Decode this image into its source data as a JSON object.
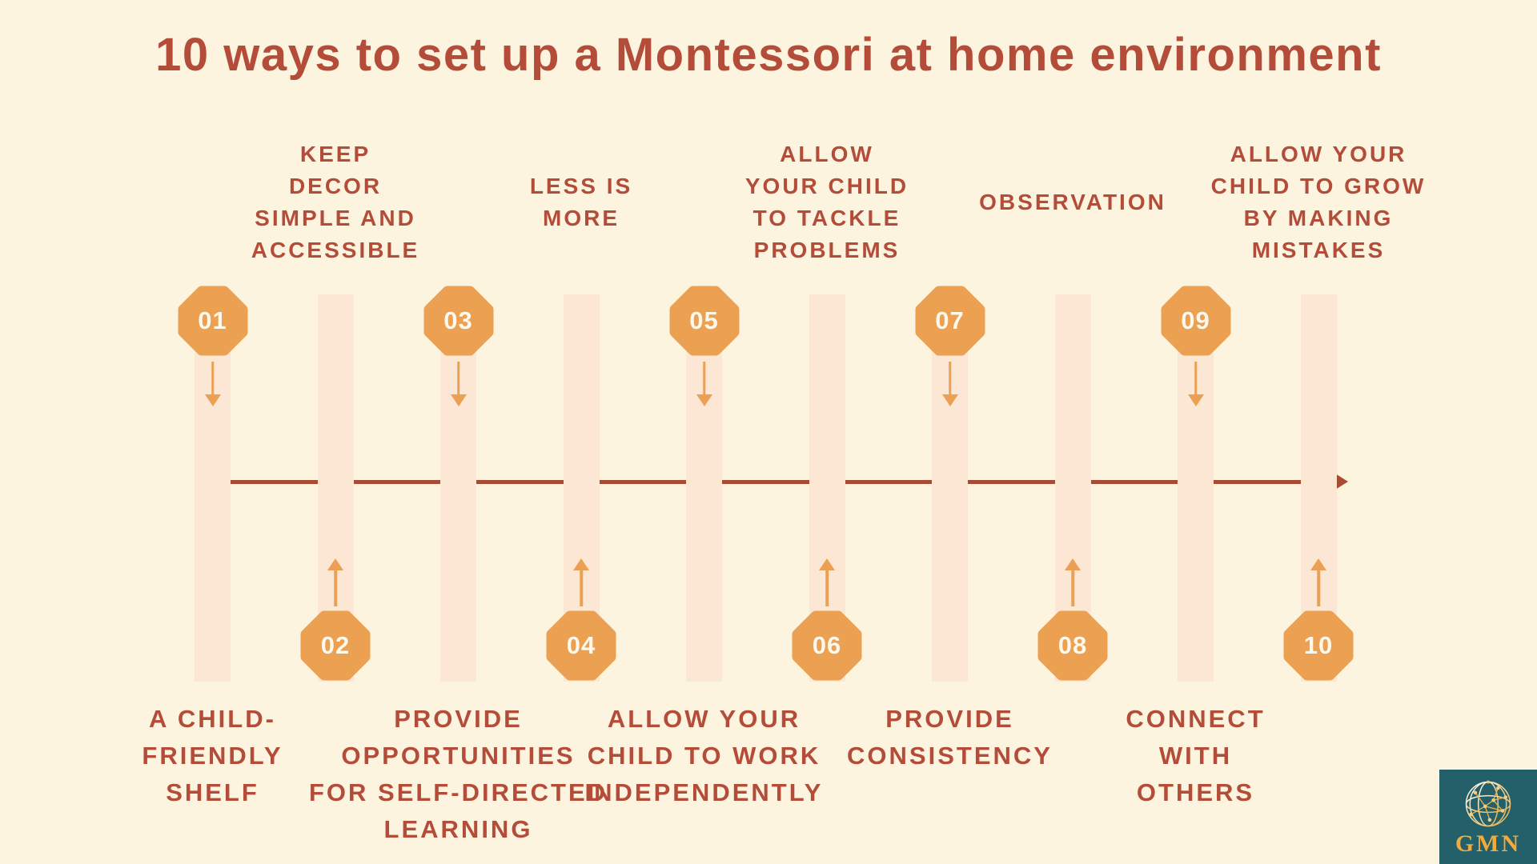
{
  "title": "10 ways to set up a Montessori at home environment",
  "items": [
    {
      "number": "01",
      "label": "A CHILD-FRIENDLY SHELF",
      "lines": [
        "A CHILD-",
        "FRIENDLY",
        "SHELF"
      ],
      "badge_position": "above-line",
      "label_position": "bottom"
    },
    {
      "number": "02",
      "label": "KEEP DECOR SIMPLE AND ACCESSIBLE",
      "lines": [
        "KEEP",
        "DECOR",
        "SIMPLE AND",
        "ACCESSIBLE"
      ],
      "badge_position": "below-line",
      "label_position": "top"
    },
    {
      "number": "03",
      "label": "PROVIDE OPPORTUNITIES FOR SELF-DIRECTED LEARNING",
      "lines": [
        "PROVIDE",
        "OPPORTUNITIES",
        "FOR SELF-DIRECTED",
        "LEARNING"
      ],
      "badge_position": "above-line",
      "label_position": "bottom"
    },
    {
      "number": "04",
      "label": "LESS IS MORE",
      "lines": [
        "LESS IS",
        "MORE"
      ],
      "badge_position": "below-line",
      "label_position": "top"
    },
    {
      "number": "05",
      "label": "ALLOW YOUR CHILD TO WORK INDEPENDENTLY",
      "lines": [
        "ALLOW YOUR",
        "CHILD TO WORK",
        "INDEPENDENTLY"
      ],
      "badge_position": "above-line",
      "label_position": "bottom"
    },
    {
      "number": "06",
      "label": "ALLOW YOUR CHILD TO TACKLE PROBLEMS",
      "lines": [
        "ALLOW",
        "YOUR CHILD",
        "TO TACKLE",
        "PROBLEMS"
      ],
      "badge_position": "below-line",
      "label_position": "top"
    },
    {
      "number": "07",
      "label": "PROVIDE CONSISTENCY",
      "lines": [
        "PROVIDE",
        "CONSISTENCY"
      ],
      "badge_position": "above-line",
      "label_position": "bottom"
    },
    {
      "number": "08",
      "label": "OBSERVATION",
      "lines": [
        "OBSERVATION"
      ],
      "badge_position": "below-line",
      "label_position": "top"
    },
    {
      "number": "09",
      "label": "CONNECT WITH OTHERS",
      "lines": [
        "CONNECT",
        "WITH",
        "OTHERS"
      ],
      "badge_position": "above-line",
      "label_position": "bottom"
    },
    {
      "number": "10",
      "label": "ALLOW YOUR CHILD TO GROW BY MAKING MISTAKES",
      "lines": [
        "ALLOW YOUR",
        "CHILD TO GROW",
        "BY MAKING",
        "MISTAKES"
      ],
      "badge_position": "below-line",
      "label_position": "top"
    }
  ],
  "logo": {
    "text": "GMN",
    "icon": "globe-network"
  },
  "colors": {
    "background": "#FCF4DF",
    "bar": "#FCE7D5",
    "badge": "#ECA052",
    "badge_text": "#FDF8EC",
    "text_red": "#B44C3A",
    "timeline": "#A84B33",
    "arrow_orange": "#EBA053",
    "logo_background": "#23606A",
    "logo_gold": "#F2A93E"
  }
}
